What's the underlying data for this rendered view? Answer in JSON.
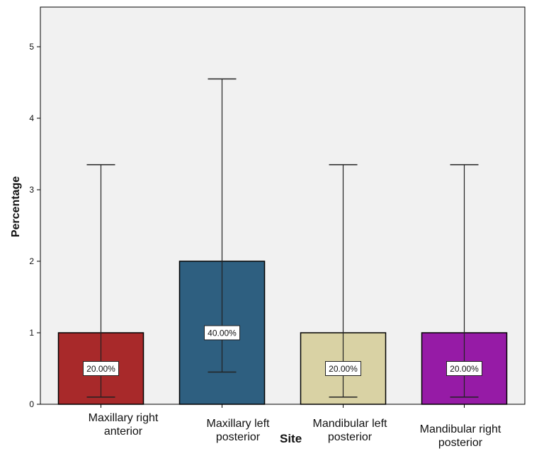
{
  "chart_data": {
    "type": "bar",
    "xlabel": "Site",
    "ylabel": "Percentage",
    "ylim": [
      0,
      5.5
    ],
    "yticks": [
      "0",
      "1",
      "2",
      "3",
      "4",
      "5"
    ],
    "grid": false,
    "categories": [
      {
        "line1": "Maxillary right",
        "line2": "anterior"
      },
      {
        "line1": "Maxillary left",
        "line2": "posterior"
      },
      {
        "line1": "Mandibular left",
        "line2": "posterior"
      },
      {
        "line1": "Mandibular right",
        "line2": "posterior"
      }
    ],
    "values": [
      1,
      2,
      1,
      1
    ],
    "error_low": [
      0.1,
      0.45,
      0.1,
      0.1
    ],
    "error_high": [
      3.35,
      4.55,
      3.35,
      3.35
    ],
    "data_labels": [
      "20.00%",
      "40.00%",
      "20.00%",
      "20.00%"
    ],
    "colors": [
      "#a8292a",
      "#2e5f80",
      "#d9d2a4",
      "#961ba6"
    ],
    "plot_background": "#f1f1f1"
  }
}
